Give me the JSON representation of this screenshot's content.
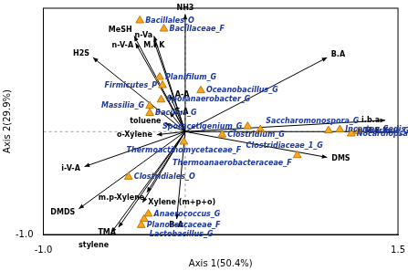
{
  "chart_data": {
    "type": "scatter",
    "x_label": "Axis 1(50.4%)",
    "y_label": "Axis 2(29.9%)",
    "xlim": [
      -1.0,
      1.5
    ],
    "xticks": [
      {
        "value": -1.0,
        "label": "-1.0"
      },
      {
        "value": 1.5,
        "label": "1.5"
      }
    ],
    "ylim": [
      -1.0,
      1.2
    ],
    "yticks": [
      {
        "value": -1.0,
        "label": "-1.0"
      }
    ],
    "grid": false,
    "points": {
      "color": "#f5a623",
      "marker": "triangle",
      "labels": [
        "Bacillales_O",
        "Bacillaceae_F",
        "Planifilum_G",
        "Firmicutes_P",
        "Oceanobacillus_G",
        "Sporanaerobacter_G",
        "Massilia_G",
        "Bacillus_G",
        "Thermoactinomycetaceae_F",
        "Clostridiales_O",
        "Anaerococcus_G",
        "Lactobacillus_G",
        "Planococcaceae_F",
        "Clostridium_G",
        "Sporacetigenium_G",
        "Saccharomonospora_G",
        "Clostridiaceae_1_G",
        "Incertae_Sedis_XI_G",
        "Nocardiopsaceae_F",
        "Thermus_G",
        "Thermoanaerobacteraceae_F"
      ],
      "x": [
        -0.32,
        -0.15,
        -0.18,
        -0.16,
        0.11,
        -0.17,
        -0.25,
        -0.25,
        -0.01,
        -0.4,
        -0.26,
        -0.29,
        -0.31,
        0.26,
        0.44,
        0.53,
        1.01,
        1.09,
        1.17,
        1.22,
        0.79
      ],
      "y": [
        1.08,
        1.0,
        0.53,
        0.45,
        0.4,
        0.31,
        0.25,
        0.18,
        -0.1,
        -0.44,
        -0.8,
        -0.85,
        -0.91,
        -0.03,
        0.05,
        0.02,
        0.01,
        0.02,
        -0.02,
        0.0,
        -0.23
      ]
    },
    "vectors": {
      "color": "#000000",
      "labels": [
        "NH3",
        "MeSH",
        "n-V-A",
        "M.I.K",
        "n-Va",
        "H2S",
        "A-A",
        "F-A",
        "toluene",
        "o-Xylene",
        "i-V-A",
        "DMDS",
        "TMA",
        "stylene",
        "m.p-Xylene",
        "Xylene (m+p+o)",
        "B-A",
        "DMS",
        "B.A",
        "i.b.a",
        "M.E.K"
      ],
      "x": [
        0.0,
        -0.36,
        -0.35,
        -0.22,
        -0.22,
        -0.65,
        -0.11,
        -0.11,
        -0.14,
        -0.2,
        -0.71,
        -0.75,
        -0.47,
        -0.52,
        -0.27,
        -0.3,
        -0.06,
        1.0,
        1.0,
        1.41,
        1.47
      ],
      "y": [
        1.14,
        0.93,
        0.86,
        0.93,
        0.88,
        0.72,
        0.36,
        0.19,
        0.08,
        -0.03,
        -0.34,
        -0.75,
        -0.93,
        -0.98,
        -0.59,
        -0.69,
        -0.85,
        -0.25,
        0.72,
        0.11,
        0.0
      ]
    }
  }
}
